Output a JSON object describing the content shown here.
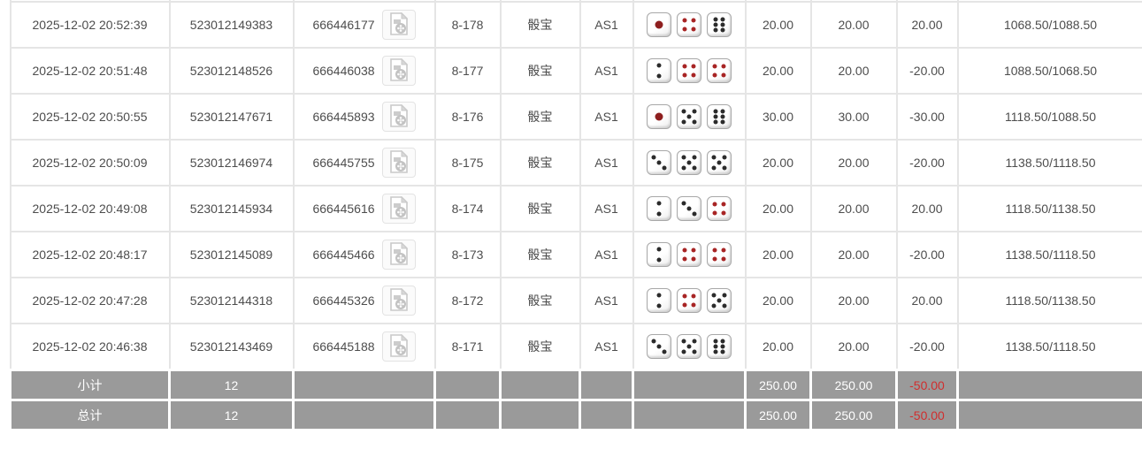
{
  "table": {
    "rows": [
      {
        "time": "2025-12-02 20:52:39",
        "order_no": "523012149383",
        "game_no": "666446177",
        "round": "8-178",
        "game_type": "骰宝",
        "table_id": "AS1",
        "dice": [
          1,
          4,
          6
        ],
        "bet": "20.00",
        "valid": "20.00",
        "win_loss": "20.00",
        "balance": "1068.50/1088.50"
      },
      {
        "time": "2025-12-02 20:51:48",
        "order_no": "523012148526",
        "game_no": "666446038",
        "round": "8-177",
        "game_type": "骰宝",
        "table_id": "AS1",
        "dice": [
          2,
          4,
          4
        ],
        "bet": "20.00",
        "valid": "20.00",
        "win_loss": "-20.00",
        "balance": "1088.50/1068.50"
      },
      {
        "time": "2025-12-02 20:50:55",
        "order_no": "523012147671",
        "game_no": "666445893",
        "round": "8-176",
        "game_type": "骰宝",
        "table_id": "AS1",
        "dice": [
          1,
          5,
          6
        ],
        "bet": "30.00",
        "valid": "30.00",
        "win_loss": "-30.00",
        "balance": "1118.50/1088.50"
      },
      {
        "time": "2025-12-02 20:50:09",
        "order_no": "523012146974",
        "game_no": "666445755",
        "round": "8-175",
        "game_type": "骰宝",
        "table_id": "AS1",
        "dice": [
          3,
          5,
          5
        ],
        "bet": "20.00",
        "valid": "20.00",
        "win_loss": "-20.00",
        "balance": "1138.50/1118.50"
      },
      {
        "time": "2025-12-02 20:49:08",
        "order_no": "523012145934",
        "game_no": "666445616",
        "round": "8-174",
        "game_type": "骰宝",
        "table_id": "AS1",
        "dice": [
          2,
          3,
          4
        ],
        "bet": "20.00",
        "valid": "20.00",
        "win_loss": "20.00",
        "balance": "1118.50/1138.50"
      },
      {
        "time": "2025-12-02 20:48:17",
        "order_no": "523012145089",
        "game_no": "666445466",
        "round": "8-173",
        "game_type": "骰宝",
        "table_id": "AS1",
        "dice": [
          2,
          4,
          4
        ],
        "bet": "20.00",
        "valid": "20.00",
        "win_loss": "-20.00",
        "balance": "1138.50/1118.50"
      },
      {
        "time": "2025-12-02 20:47:28",
        "order_no": "523012144318",
        "game_no": "666445326",
        "round": "8-172",
        "game_type": "骰宝",
        "table_id": "AS1",
        "dice": [
          2,
          4,
          5
        ],
        "bet": "20.00",
        "valid": "20.00",
        "win_loss": "20.00",
        "balance": "1118.50/1138.50"
      },
      {
        "time": "2025-12-02 20:46:38",
        "order_no": "523012143469",
        "game_no": "666445188",
        "round": "8-171",
        "game_type": "骰宝",
        "table_id": "AS1",
        "dice": [
          3,
          5,
          6
        ],
        "bet": "20.00",
        "valid": "20.00",
        "win_loss": "-20.00",
        "balance": "1138.50/1118.50"
      }
    ],
    "subtotal": {
      "label": "小计",
      "count": "12",
      "bet": "250.00",
      "valid": "250.00",
      "win_loss": "-50.00"
    },
    "total": {
      "label": "总计",
      "count": "12",
      "bet": "250.00",
      "valid": "250.00",
      "win_loss": "-50.00"
    }
  },
  "icons": {
    "replay": "video-file-icon",
    "dice": "die-icon"
  },
  "colors": {
    "link_blue": "#3b6fd1",
    "loss_red": "#e62e2e",
    "summary_red": "#d02e2e",
    "summary_bg": "#9a9a9a",
    "pip_red": "#a82424",
    "pip_black": "#2b2b2b",
    "grid": "#e5e5e5"
  }
}
